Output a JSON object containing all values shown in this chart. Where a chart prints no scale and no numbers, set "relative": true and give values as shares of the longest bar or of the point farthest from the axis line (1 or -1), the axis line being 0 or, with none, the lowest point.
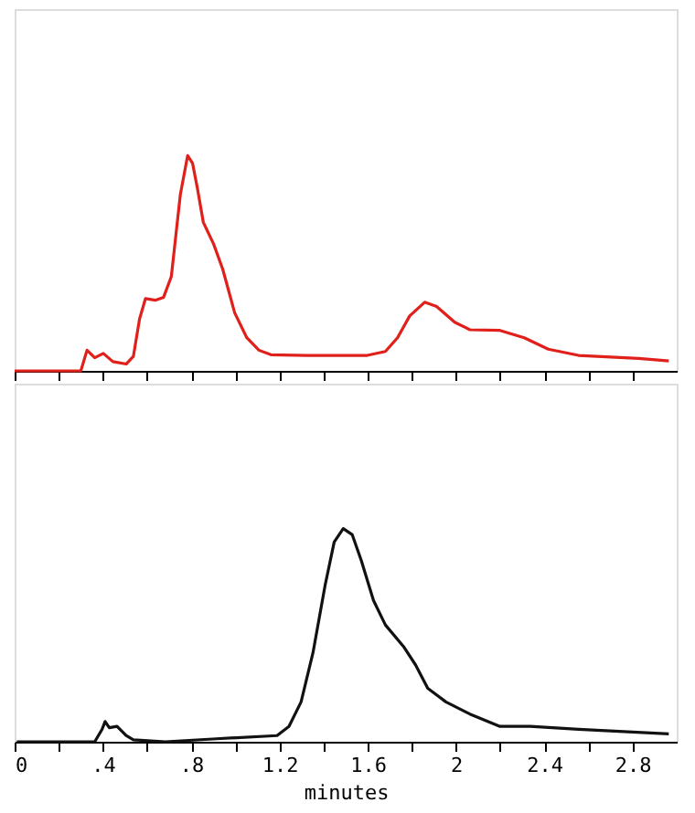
{
  "chart_data": [
    {
      "type": "line",
      "relative": true,
      "color": "#e0201b",
      "tick_labels": false,
      "grid": false,
      "line_style": "solid",
      "marker": "none",
      "xlim": [
        0,
        3
      ],
      "xticks": [
        {
          "value": 0,
          "label": null
        },
        {
          "value": 0.2,
          "label": null
        },
        {
          "value": 0.4,
          "label": null
        },
        {
          "value": 0.6,
          "label": null
        },
        {
          "value": 0.8,
          "label": null
        },
        {
          "value": 1.0,
          "label": null
        },
        {
          "value": 1.2,
          "label": null
        },
        {
          "value": 1.4,
          "label": null
        },
        {
          "value": 1.6,
          "label": null
        },
        {
          "value": 1.8,
          "label": null
        },
        {
          "value": 2,
          "label": null
        },
        {
          "value": 2.2,
          "label": null
        },
        {
          "value": 2.4,
          "label": null
        },
        {
          "value": 2.6,
          "label": null
        },
        {
          "value": 2.8,
          "label": null
        }
      ],
      "x": [
        0.0,
        0.3,
        0.328,
        0.363,
        0.402,
        0.445,
        0.506,
        0.538,
        0.566,
        0.593,
        0.637,
        0.675,
        0.71,
        0.751,
        0.784,
        0.806,
        0.828,
        0.855,
        0.902,
        0.943,
        0.997,
        1.052,
        1.107,
        1.161,
        1.325,
        1.598,
        1.68,
        1.735,
        1.79,
        1.858,
        1.912,
        1.994,
        2.063,
        2.199,
        2.309,
        2.418,
        2.555,
        2.828,
        2.964
      ],
      "values": [
        0,
        0,
        0.096,
        0.061,
        0.081,
        0.043,
        0.032,
        0.067,
        0.241,
        0.336,
        0.328,
        0.342,
        0.438,
        0.82,
        1.0,
        0.965,
        0.849,
        0.69,
        0.588,
        0.472,
        0.27,
        0.154,
        0.096,
        0.075,
        0.072,
        0.072,
        0.09,
        0.154,
        0.255,
        0.319,
        0.299,
        0.226,
        0.191,
        0.188,
        0.154,
        0.101,
        0.072,
        0.058,
        0.046
      ]
    },
    {
      "type": "line",
      "relative": true,
      "color": "#111111",
      "tick_labels": "x",
      "grid": false,
      "line_style": "solid",
      "marker": "none",
      "xlabel": "minutes",
      "xlim": [
        0,
        3
      ],
      "xticks": [
        {
          "value": 0,
          "label": "0"
        },
        {
          "value": 0.2,
          "label": null
        },
        {
          "value": 0.4,
          "label": ".4"
        },
        {
          "value": 0.6,
          "label": null
        },
        {
          "value": 0.8,
          "label": ".8"
        },
        {
          "value": 1.0,
          "label": null
        },
        {
          "value": 1.2,
          "label": "1.2"
        },
        {
          "value": 1.4,
          "label": null
        },
        {
          "value": 1.6,
          "label": "1.6"
        },
        {
          "value": 1.8,
          "label": null
        },
        {
          "value": 2,
          "label": "2"
        },
        {
          "value": 2.2,
          "label": null
        },
        {
          "value": 2.4,
          "label": "2.4"
        },
        {
          "value": 2.6,
          "label": null
        },
        {
          "value": 2.8,
          "label": "2.8"
        }
      ],
      "x": [
        0.01,
        0.363,
        0.396,
        0.41,
        0.429,
        0.464,
        0.505,
        0.538,
        0.683,
        0.915,
        1.189,
        1.243,
        1.298,
        1.352,
        1.407,
        1.448,
        1.489,
        1.53,
        1.571,
        1.626,
        1.68,
        1.762,
        1.817,
        1.872,
        1.954,
        2.063,
        2.199,
        2.336,
        2.555,
        2.964
      ],
      "values": [
        0,
        0,
        0.058,
        0.095,
        0.066,
        0.072,
        0.029,
        0.009,
        0,
        0.014,
        0.029,
        0.072,
        0.187,
        0.418,
        0.735,
        0.937,
        1.0,
        0.971,
        0.85,
        0.663,
        0.548,
        0.447,
        0.36,
        0.251,
        0.187,
        0.13,
        0.072,
        0.072,
        0.058,
        0.037
      ]
    }
  ]
}
